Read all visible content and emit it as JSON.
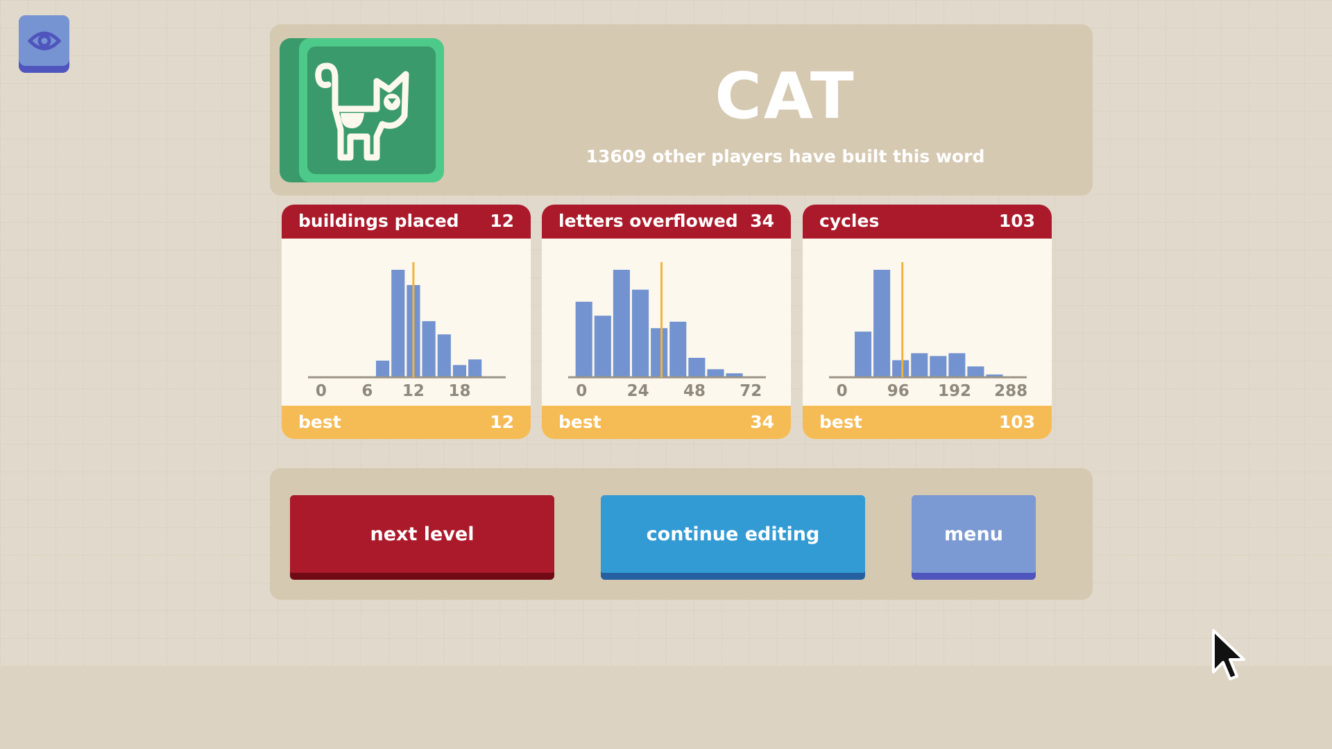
{
  "word": {
    "title": "CAT",
    "subtitle": "13609 other players have built this word",
    "icon": "cat-letter-tile-icon"
  },
  "view_button": {
    "icon": "eye-icon"
  },
  "colors": {
    "header_red": "#ab1a2b",
    "best_yellow": "#f5bb55",
    "bar_blue": "#7393d0",
    "marker_orange": "#f2b33d",
    "green_tile": "#3a9a6c"
  },
  "chart_data": [
    {
      "type": "bar",
      "title": "buildings placed",
      "value": "12",
      "best_label": "best",
      "best": "12",
      "xlim": [
        -1.7,
        24
      ],
      "ticks": [
        "0",
        "6",
        "12",
        "18"
      ],
      "tick_values": [
        0,
        6,
        12,
        18
      ],
      "bins": [
        [
          7,
          9
        ],
        [
          9,
          11
        ],
        [
          11,
          13
        ],
        [
          13,
          15
        ],
        [
          15,
          17
        ],
        [
          17,
          19
        ],
        [
          19,
          21
        ]
      ],
      "values": [
        15.5,
        100,
        85.8,
        52.2,
        39.9,
        11.4,
        16.6
      ],
      "marker": 12
    },
    {
      "type": "bar",
      "title": "letters overflowed",
      "value": "34",
      "best_label": "best",
      "best": "34",
      "xlim": [
        -5.7,
        78.4
      ],
      "ticks": [
        "0",
        "24",
        "48",
        "72"
      ],
      "tick_values": [
        0,
        24,
        48,
        72
      ],
      "bins": [
        [
          -3,
          5
        ],
        [
          5,
          13
        ],
        [
          13,
          21
        ],
        [
          21,
          29
        ],
        [
          29,
          37
        ],
        [
          37,
          45
        ],
        [
          45,
          53
        ],
        [
          53,
          61
        ],
        [
          61,
          69
        ]
      ],
      "values": [
        70.3,
        57.3,
        100,
        81.5,
        45.7,
        51.7,
        18.1,
        7.5,
        3.7
      ],
      "marker": 34
    },
    {
      "type": "bar",
      "title": "cycles",
      "value": "103",
      "best_label": "best",
      "best": "103",
      "xlim": [
        -22,
        315
      ],
      "ticks": [
        "0",
        "96",
        "192",
        "288"
      ],
      "tick_values": [
        0,
        96,
        192,
        288
      ],
      "bins": [
        [
          20,
          52
        ],
        [
          52,
          84
        ],
        [
          84,
          116
        ],
        [
          116,
          148
        ],
        [
          148,
          180
        ],
        [
          180,
          212
        ],
        [
          212,
          244
        ],
        [
          244,
          276
        ]
      ],
      "values": [
        42.5,
        100,
        15.9,
        22.4,
        19.8,
        22.4,
        10.1,
        2.6
      ],
      "marker": 103
    }
  ],
  "buttons": {
    "next": "next level",
    "continue": "continue editing",
    "menu": "menu"
  }
}
